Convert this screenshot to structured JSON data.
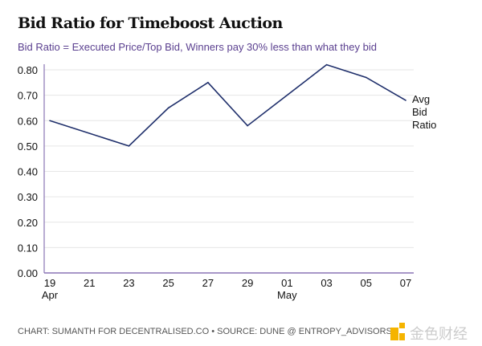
{
  "chart_data": {
    "type": "line",
    "title": "Bid Ratio for Timeboost Auction",
    "subtitle": "Bid Ratio = Executed Price/Top Bid, Winners pay 30% less than what they bid",
    "xlabel": "",
    "ylabel": "",
    "x": [
      "2024-04-19",
      "2024-04-23",
      "2024-04-25",
      "2024-04-27",
      "2024-04-29",
      "2024-05-03",
      "2024-05-05",
      "2024-05-07"
    ],
    "series": [
      {
        "name": "Avg Bid Ratio",
        "values": [
          0.6,
          0.5,
          0.65,
          0.75,
          0.58,
          0.82,
          0.77,
          0.68
        ],
        "color": "#1f2f6b"
      }
    ],
    "series_label_lines": [
      "Avg",
      "Bid",
      "Ratio"
    ],
    "ylim": [
      0,
      0.8
    ],
    "yticks": [
      "0.00",
      "0.10",
      "0.20",
      "0.30",
      "0.40",
      "0.50",
      "0.60",
      "0.70",
      "0.80"
    ],
    "xticks": [
      {
        "label": "19",
        "sub": "Apr"
      },
      {
        "label": "21",
        "sub": ""
      },
      {
        "label": "23",
        "sub": ""
      },
      {
        "label": "25",
        "sub": ""
      },
      {
        "label": "27",
        "sub": ""
      },
      {
        "label": "29",
        "sub": ""
      },
      {
        "label": "01",
        "sub": "May"
      },
      {
        "label": "03",
        "sub": ""
      },
      {
        "label": "05",
        "sub": ""
      },
      {
        "label": "07",
        "sub": ""
      }
    ],
    "grid": true,
    "legend": "right-inline"
  },
  "footer": "CHART: SUMANTH FOR DECENTRALISED.CO • SOURCE: DUNE @ ENTROPY_ADVISORS",
  "watermark": "金色财经"
}
